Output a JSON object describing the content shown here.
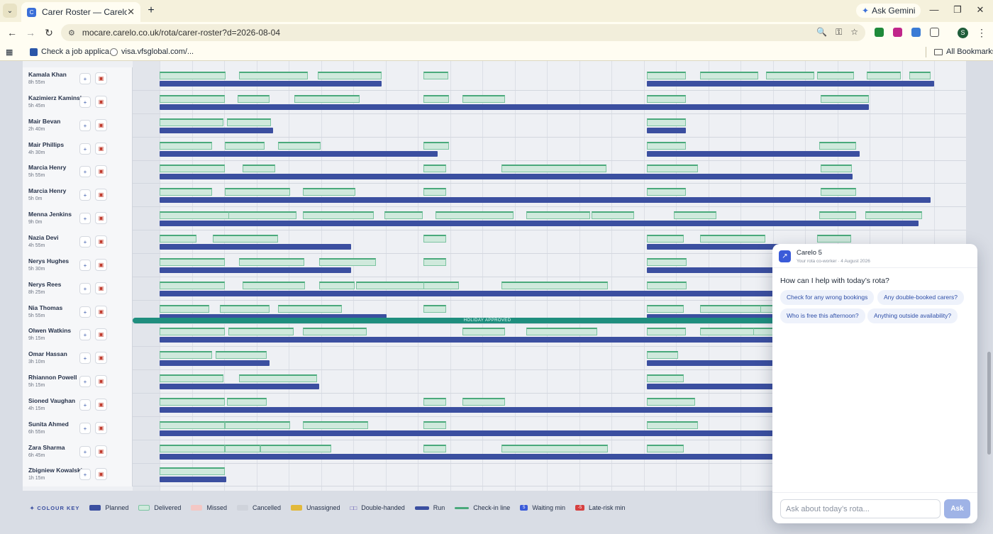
{
  "browser": {
    "tab_title": "Carer Roster — Carelo",
    "url": "mocare.carelo.co.uk/rota/carer-roster?d=2026-08-04",
    "gemini_label": "Ask Gemini",
    "profile_initial": "S",
    "bookmarks": [
      "Check a job applica...",
      "visa.vfsglobal.com/..."
    ],
    "all_bookmarks": "All Bookmarks"
  },
  "roster": {
    "carers": [
      {
        "name": "Kamala Khan",
        "hours": "8h 55m"
      },
      {
        "name": "Kazimierz Kaminska",
        "hours": "5h 45m"
      },
      {
        "name": "Mair Bevan",
        "hours": "2h 40m"
      },
      {
        "name": "Mair Phillips",
        "hours": "4h 30m"
      },
      {
        "name": "Marcia Henry",
        "hours": "5h 55m"
      },
      {
        "name": "Marcia Henry",
        "hours": "5h 0m"
      },
      {
        "name": "Menna Jenkins",
        "hours": "9h 0m"
      },
      {
        "name": "Nazia Devi",
        "hours": "4h 55m"
      },
      {
        "name": "Nerys Hughes",
        "hours": "5h 30m"
      },
      {
        "name": "Nerys Rees",
        "hours": "8h 25m"
      },
      {
        "name": "Nia Thomas",
        "hours": "5h 55m"
      },
      {
        "name": "Olwen Watkins",
        "hours": "9h 15m"
      },
      {
        "name": "Omar Hassan",
        "hours": "3h 10m"
      },
      {
        "name": "Rhiannon Powell",
        "hours": "5h 15m"
      },
      {
        "name": "Sioned Vaughan",
        "hours": "4h 15m"
      },
      {
        "name": "Sunita Ahmed",
        "hours": "6h 55m"
      },
      {
        "name": "Zara Sharma",
        "hours": "6h 45m"
      },
      {
        "name": "Zbigniew Kowalski",
        "hours": "1h 15m"
      }
    ],
    "holiday_label": "HOLIDAY APPROVED"
  },
  "legend": {
    "title": "COLOUR KEY",
    "items": [
      {
        "label": "Planned",
        "color": "#3b4fa0"
      },
      {
        "label": "Delivered",
        "color": "#cfe9dc"
      },
      {
        "label": "Missed",
        "color": "#f3c7c4"
      },
      {
        "label": "Cancelled",
        "color": "#cfd3db"
      },
      {
        "label": "Unassigned",
        "color": "#e2b93b"
      },
      {
        "label": "Double-handed",
        "color": "#4c3fa8"
      },
      {
        "label": "Run",
        "color": "#3b4fa0"
      },
      {
        "label": "Check-in line",
        "color": "#4aa97b"
      },
      {
        "label": "Waiting min",
        "color": "#3a5bd9"
      },
      {
        "label": "Late-risk min",
        "color": "#d64040"
      }
    ]
  },
  "chat": {
    "title": "Carelo 5",
    "subtitle": "Your rota co-worker · 4 August 2026",
    "question": "How can I help with today’s rota?",
    "suggestions": [
      "Check for any wrong bookings",
      "Any double-booked carers?",
      "Who is free this afternoon?",
      "Anything outside availability?"
    ],
    "input_placeholder": "Ask about today’s rota...",
    "send_label": "Ask"
  }
}
